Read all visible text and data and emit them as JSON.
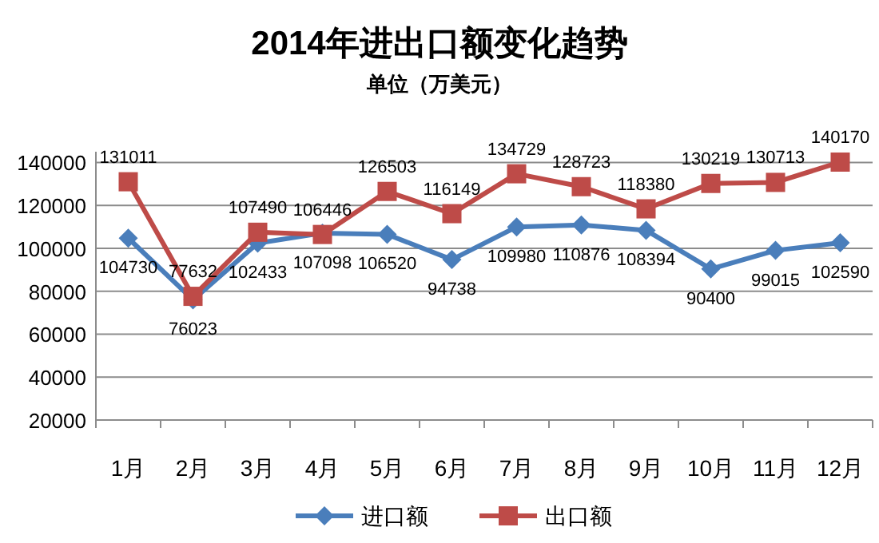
{
  "chart_data": {
    "type": "line",
    "title": "2014年进出口额变化趋势",
    "subtitle": "单位（万美元）",
    "categories": [
      "1月",
      "2月",
      "3月",
      "4月",
      "5月",
      "6月",
      "7月",
      "8月",
      "9月",
      "10月",
      "11月",
      "12月"
    ],
    "series": [
      {
        "name": "进口额",
        "color": "#4a7ebb",
        "marker": "diamond",
        "values": [
          104730,
          76023,
          102433,
          107098,
          106520,
          94738,
          109980,
          110876,
          108394,
          90400,
          99015,
          102590
        ]
      },
      {
        "name": "出口额",
        "color": "#be4b48",
        "marker": "square",
        "values": [
          131011,
          77632,
          107490,
          106446,
          126503,
          116149,
          134729,
          128723,
          118380,
          130219,
          130713,
          140170
        ]
      }
    ],
    "ylim": [
      20000,
      145000
    ],
    "yticks": [
      20000,
      40000,
      60000,
      80000,
      100000,
      120000,
      140000
    ],
    "grid": "y",
    "legend": "bottom",
    "data_labels": true
  }
}
